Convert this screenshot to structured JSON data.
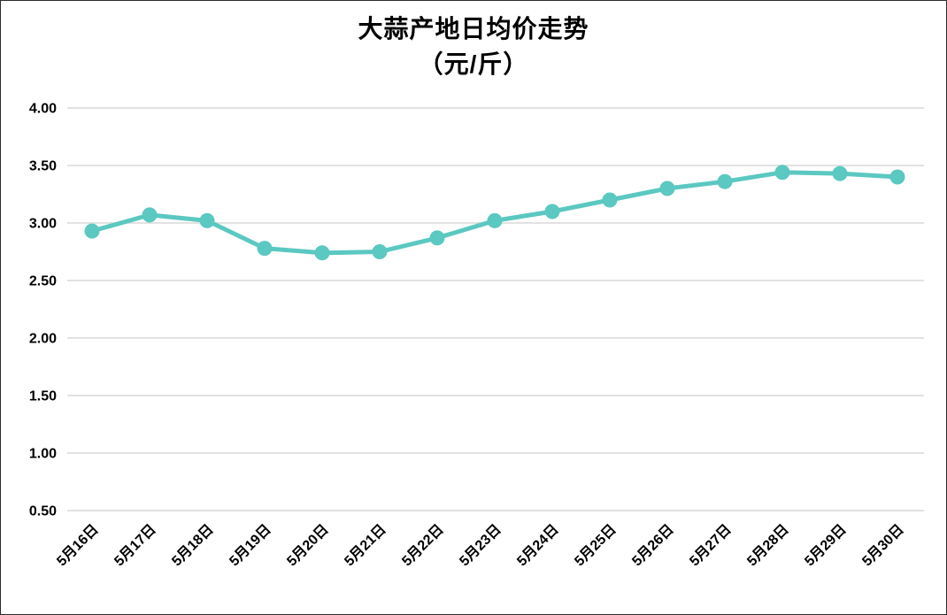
{
  "chart_data": {
    "type": "line",
    "title": "大蒜产地日均价走势",
    "subtitle": "（元/斤）",
    "categories": [
      "5月16日",
      "5月17日",
      "5月18日",
      "5月19日",
      "5月20日",
      "5月21日",
      "5月22日",
      "5月23日",
      "5月24日",
      "5月25日",
      "5月26日",
      "5月27日",
      "5月28日",
      "5月29日",
      "5月30日"
    ],
    "values": [
      2.93,
      3.07,
      3.02,
      2.78,
      2.74,
      2.75,
      2.87,
      3.02,
      3.1,
      3.2,
      3.3,
      3.36,
      3.44,
      3.43,
      3.4
    ],
    "y_ticks": [
      "4.00",
      "3.50",
      "3.00",
      "2.50",
      "2.00",
      "1.50",
      "1.00",
      "0.50"
    ],
    "ylim": [
      0.5,
      4.0
    ],
    "grid": true,
    "legend": false,
    "x_label_rotation_deg": 45,
    "colors": {
      "line": "#5BC8C1",
      "gridline": "#D9D9D9",
      "text": "#000000",
      "background": "#FFFFFF"
    }
  }
}
